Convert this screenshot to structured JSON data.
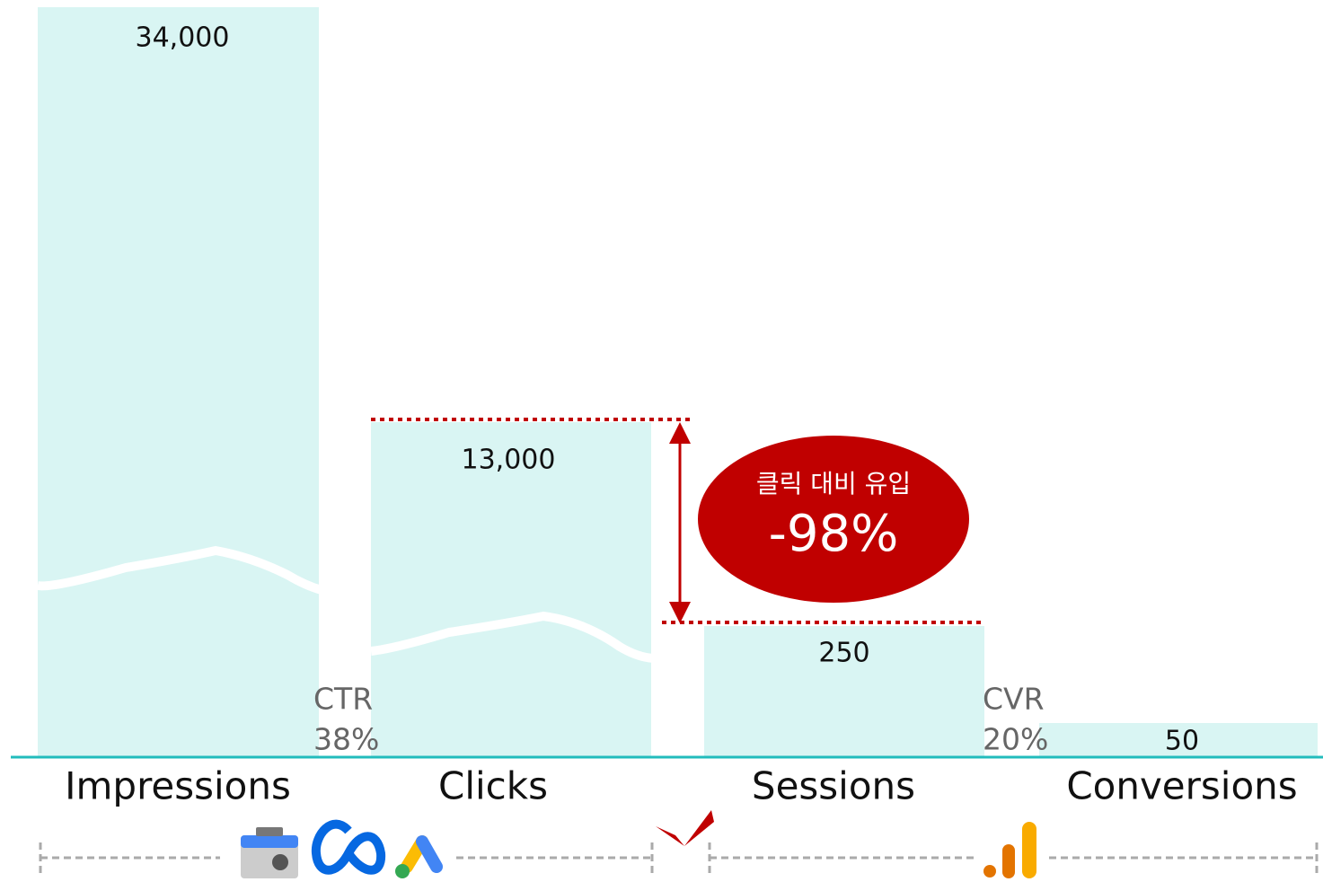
{
  "stages": [
    {
      "label": "Impressions",
      "value": "34,000"
    },
    {
      "label": "Clicks",
      "value": "13,000"
    },
    {
      "label": "Sessions",
      "value": "250"
    },
    {
      "label": "Conversions",
      "value": "50"
    }
  ],
  "rates": [
    {
      "label": "CTR",
      "value": "38%"
    },
    {
      "label": "CVR",
      "value": "20%"
    }
  ],
  "callout": {
    "text": "클릭 대비 유입",
    "value": "-98%"
  }
}
